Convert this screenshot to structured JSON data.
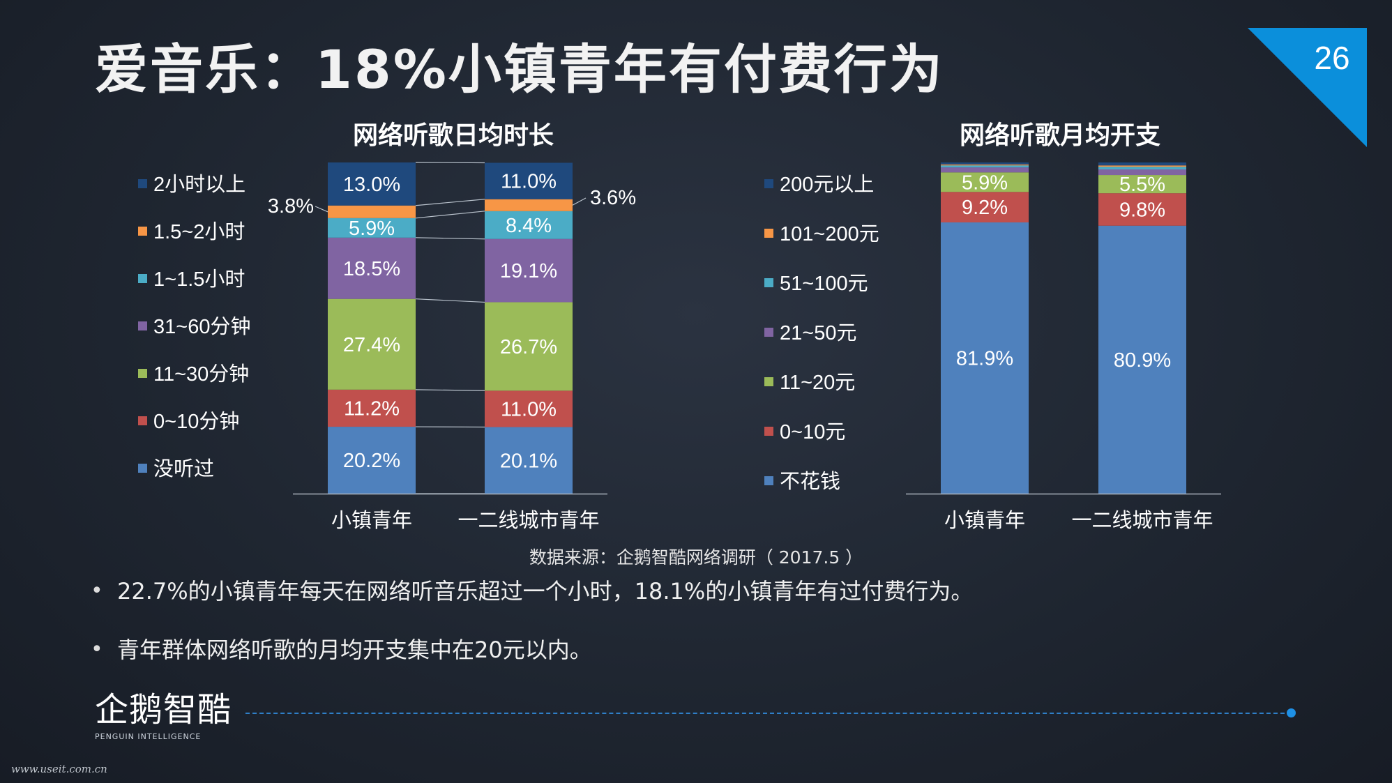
{
  "slide": {
    "title": "爱音乐：18%小镇青年有付费行为",
    "page_number": "26",
    "source": "数据来源：企鹅智酷网络调研（ 2017.5 ）",
    "bullets": [
      "22.7%的小镇青年每天在网络听音乐超过一个小时，18.1%的小镇青年有过付费行为。",
      "青年群体网络听歌的月均开支集中在20元以内。"
    ],
    "logo": {
      "text": "企鹅智酷",
      "subtext": "PENGUIN INTELLIGENCE"
    },
    "watermark": "www.useit.com.cn",
    "accent_color": "#0b8fdb"
  },
  "chart_data": [
    {
      "type": "bar",
      "stacked": true,
      "title": "网络听歌日均时长",
      "categories": [
        "小镇青年",
        "一二线城市青年"
      ],
      "series": [
        {
          "name": "没听过",
          "color": "#4f81bd",
          "values": [
            20.2,
            20.1
          ],
          "labels": [
            "20.2%",
            "20.1%"
          ]
        },
        {
          "name": "0~10分钟",
          "color": "#c0504d",
          "values": [
            11.2,
            11.0
          ],
          "labels": [
            "11.2%",
            "11.0%"
          ]
        },
        {
          "name": "11~30分钟",
          "color": "#9bbb59",
          "values": [
            27.4,
            26.7
          ],
          "labels": [
            "27.4%",
            "26.7%"
          ]
        },
        {
          "name": "31~60分钟",
          "color": "#8064a2",
          "values": [
            18.5,
            19.1
          ],
          "labels": [
            "18.5%",
            "19.1%"
          ]
        },
        {
          "name": "1~1.5小时",
          "color": "#4bacc6",
          "values": [
            5.9,
            8.4
          ],
          "labels": [
            "5.9%",
            "8.4%"
          ]
        },
        {
          "name": "1.5~2小时",
          "color": "#f79646",
          "values": [
            3.8,
            3.6
          ],
          "labels": [
            "3.8%",
            "3.6%"
          ]
        },
        {
          "name": "2小时以上",
          "color": "#1f497d",
          "values": [
            13.0,
            11.0
          ],
          "labels": [
            "13.0%",
            "11.0%"
          ]
        }
      ],
      "legend": "left",
      "ylim": [
        0,
        100
      ]
    },
    {
      "type": "bar",
      "stacked": true,
      "title": "网络听歌月均开支",
      "categories": [
        "小镇青年",
        "一二线城市青年"
      ],
      "series": [
        {
          "name": "不花钱",
          "color": "#4f81bd",
          "values": [
            81.9,
            80.9
          ],
          "labels": [
            "81.9%",
            "80.9%"
          ]
        },
        {
          "name": "0~10元",
          "color": "#c0504d",
          "values": [
            9.2,
            9.8
          ],
          "labels": [
            "9.2%",
            "9.8%"
          ]
        },
        {
          "name": "11~20元",
          "color": "#9bbb59",
          "values": [
            5.9,
            5.5
          ],
          "labels": [
            "5.9%",
            "5.5%"
          ]
        },
        {
          "name": "21~50元",
          "color": "#8064a2",
          "values": [
            1.5,
            1.7
          ],
          "labels": [
            "",
            ""
          ]
        },
        {
          "name": "51~100元",
          "color": "#4bacc6",
          "values": [
            0.6,
            0.8
          ],
          "labels": [
            "",
            ""
          ]
        },
        {
          "name": "101~200元",
          "color": "#f79646",
          "values": [
            0.3,
            0.4
          ],
          "labels": [
            "",
            ""
          ]
        },
        {
          "name": "200元以上",
          "color": "#1f497d",
          "values": [
            0.6,
            0.9
          ],
          "labels": [
            "",
            ""
          ]
        }
      ],
      "legend": "left",
      "ylim": [
        0,
        100
      ]
    }
  ]
}
